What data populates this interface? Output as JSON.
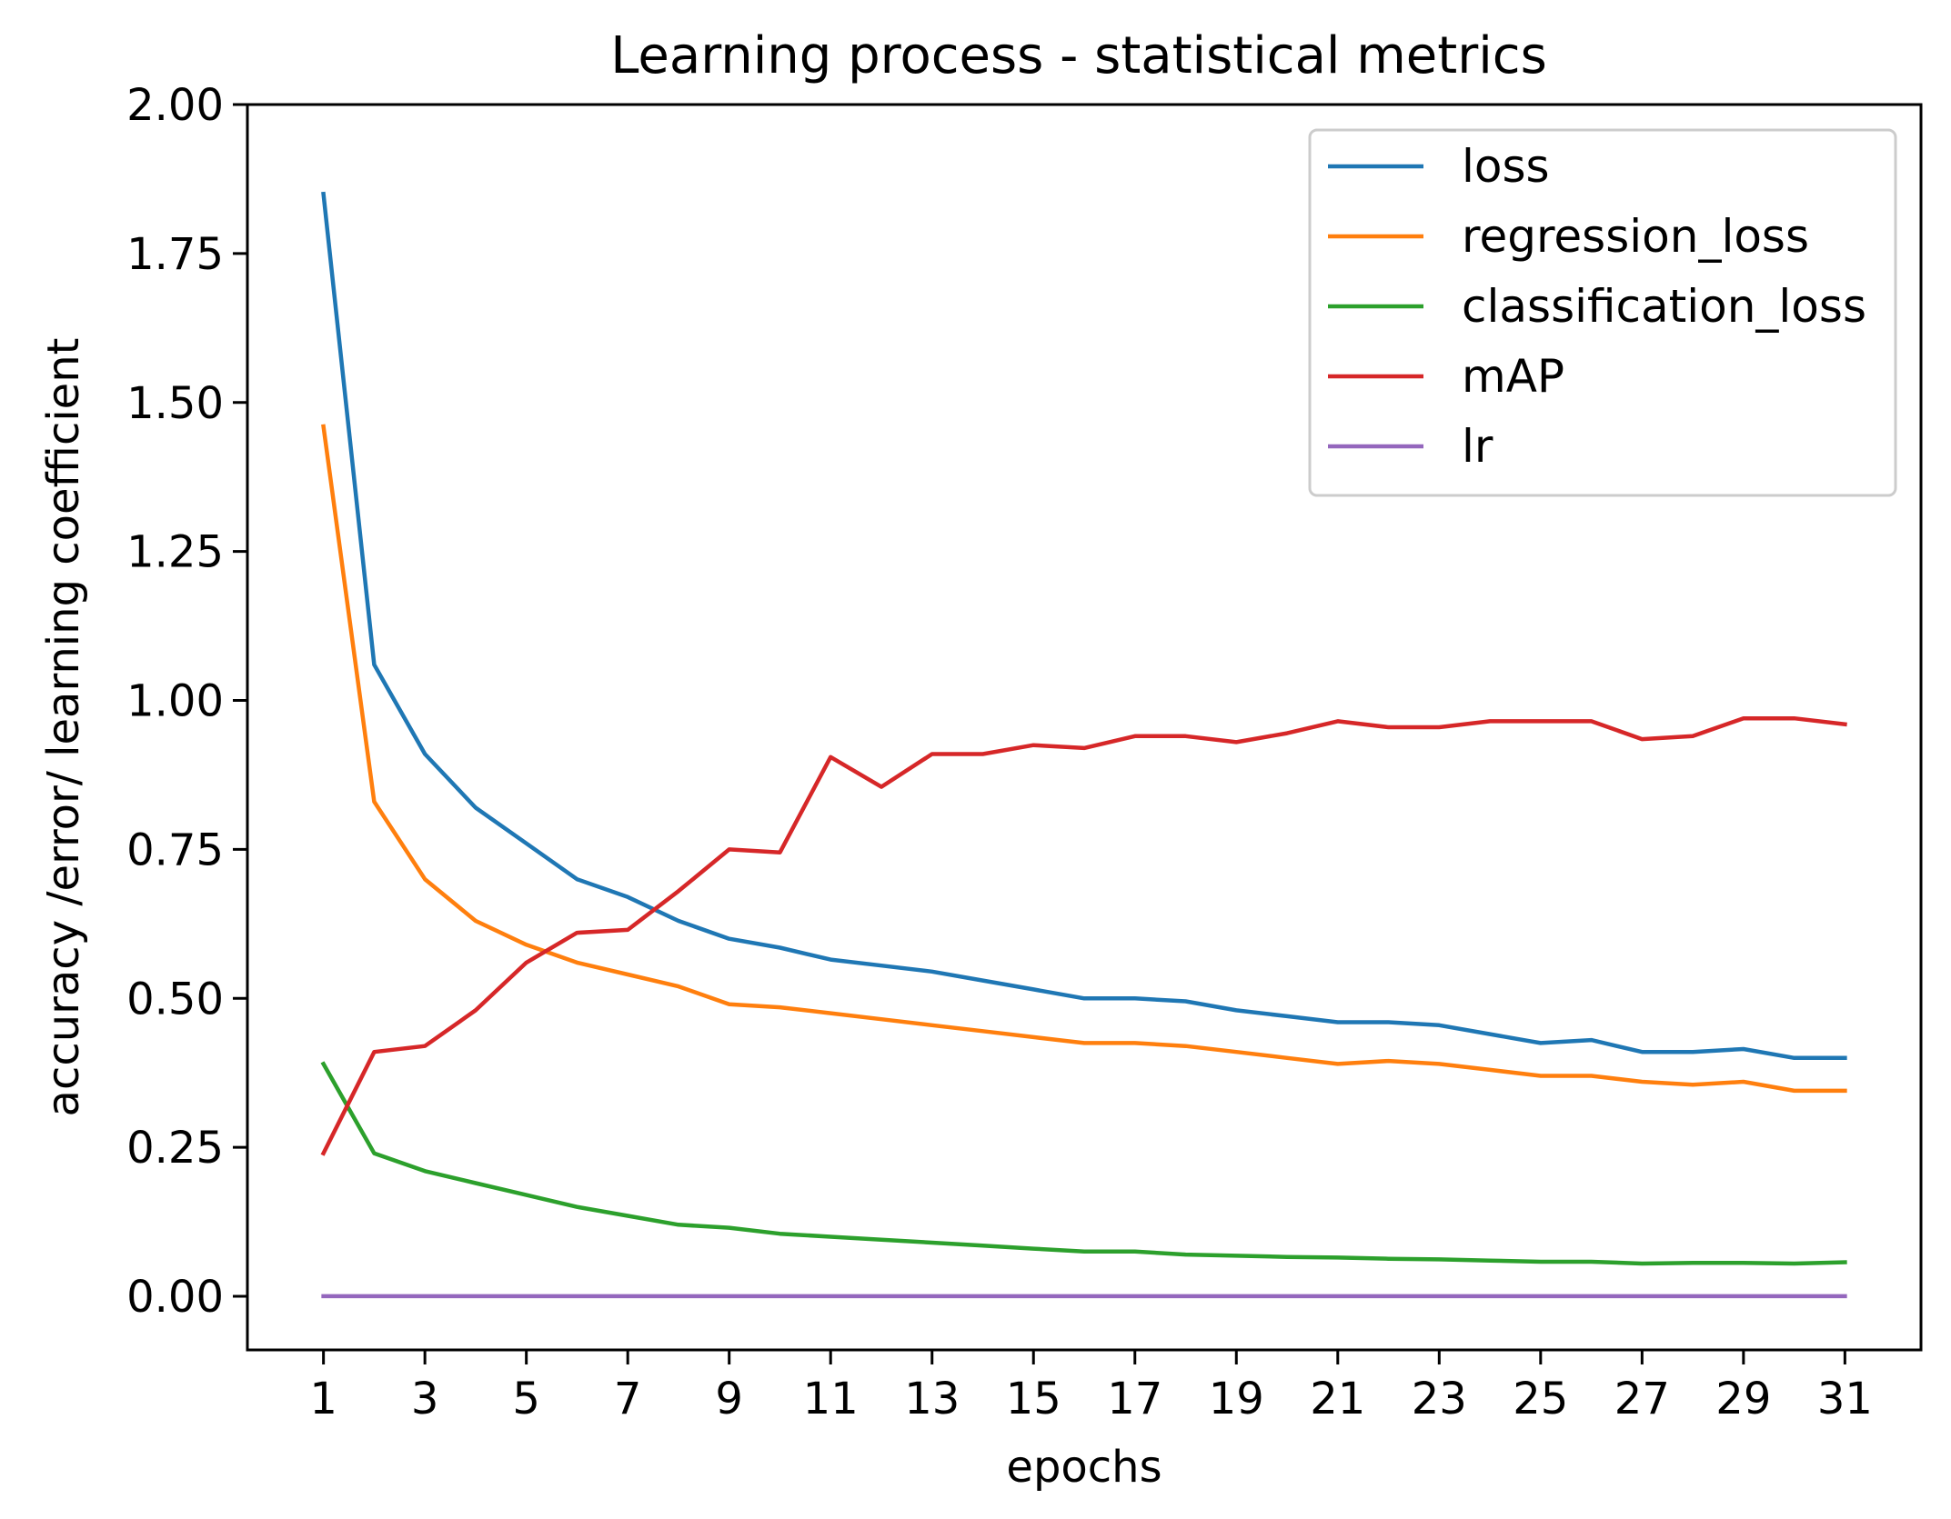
{
  "chart_data": {
    "type": "line",
    "title": "Learning process - statistical metrics",
    "xlabel": "epochs",
    "ylabel": "accuracy /error/ learning coefficient",
    "xlim": [
      -0.5,
      32.5
    ],
    "ylim": [
      -0.09,
      2.0
    ],
    "x_ticks": [
      1,
      3,
      5,
      7,
      9,
      11,
      13,
      15,
      17,
      19,
      21,
      23,
      25,
      27,
      29,
      31
    ],
    "y_ticks": [
      "0.00",
      "0.25",
      "0.50",
      "0.75",
      "1.00",
      "1.25",
      "1.50",
      "1.75",
      "2.00"
    ],
    "x": [
      1,
      2,
      3,
      4,
      5,
      6,
      7,
      8,
      9,
      10,
      11,
      12,
      13,
      14,
      15,
      16,
      17,
      18,
      19,
      20,
      21,
      22,
      23,
      24,
      25,
      26,
      27,
      28,
      29,
      30,
      31
    ],
    "legend_position": "top-right",
    "series": [
      {
        "name": "loss",
        "color": "#1f77b4",
        "values": [
          1.85,
          1.06,
          0.91,
          0.82,
          0.76,
          0.7,
          0.67,
          0.63,
          0.6,
          0.585,
          0.565,
          0.555,
          0.545,
          0.53,
          0.515,
          0.5,
          0.5,
          0.495,
          0.48,
          0.47,
          0.46,
          0.46,
          0.455,
          0.44,
          0.425,
          0.43,
          0.41,
          0.41,
          0.415,
          0.4,
          0.4
        ]
      },
      {
        "name": "regression_loss",
        "color": "#ff7f0e",
        "values": [
          1.46,
          0.83,
          0.7,
          0.63,
          0.59,
          0.56,
          0.54,
          0.52,
          0.49,
          0.485,
          0.475,
          0.465,
          0.455,
          0.445,
          0.435,
          0.425,
          0.425,
          0.42,
          0.41,
          0.4,
          0.39,
          0.395,
          0.39,
          0.38,
          0.37,
          0.37,
          0.36,
          0.355,
          0.36,
          0.345,
          0.345
        ]
      },
      {
        "name": "classification_loss",
        "color": "#2ca02c",
        "values": [
          0.39,
          0.24,
          0.21,
          0.19,
          0.17,
          0.15,
          0.135,
          0.12,
          0.115,
          0.105,
          0.1,
          0.095,
          0.09,
          0.085,
          0.08,
          0.075,
          0.075,
          0.07,
          0.068,
          0.066,
          0.065,
          0.063,
          0.062,
          0.06,
          0.058,
          0.058,
          0.055,
          0.056,
          0.056,
          0.055,
          0.057
        ]
      },
      {
        "name": "mAP",
        "color": "#d62728",
        "values": [
          0.24,
          0.41,
          0.42,
          0.48,
          0.56,
          0.61,
          0.615,
          0.68,
          0.75,
          0.745,
          0.905,
          0.855,
          0.91,
          0.91,
          0.925,
          0.92,
          0.94,
          0.94,
          0.93,
          0.945,
          0.965,
          0.955,
          0.955,
          0.965,
          0.965,
          0.965,
          0.935,
          0.94,
          0.97,
          0.97,
          0.96
        ]
      },
      {
        "name": "lr",
        "color": "#9467bd",
        "values": [
          0.0001,
          0.0001,
          0.0001,
          0.0001,
          0.0001,
          0.0001,
          0.0001,
          0.0001,
          0.0001,
          0.0001,
          0.0001,
          0.0001,
          0.0001,
          0.0001,
          0.0001,
          0.0001,
          0.0001,
          0.0001,
          0.0001,
          0.0001,
          0.0001,
          0.0001,
          0.0001,
          0.0001,
          0.0001,
          0.0001,
          0.0001,
          0.0001,
          0.0001,
          0.0001,
          0.0001
        ]
      }
    ]
  }
}
